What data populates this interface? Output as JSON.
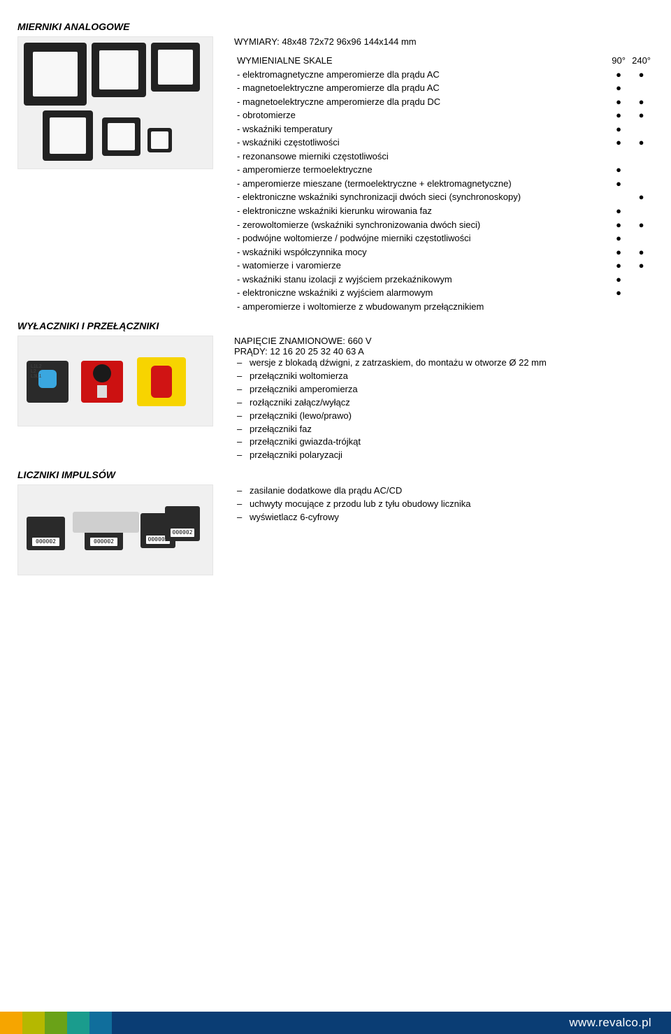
{
  "sections": {
    "analog": "MIERNIKI ANALOGOWE",
    "switches": "WYŁACZNIKI I PRZEŁĄCZNIKI",
    "counters": "LICZNIKI IMPULSÓW"
  },
  "dimensions": "WYMIARY: 48x48 72x72 96x96 144x144 mm",
  "skale_header": {
    "label": "WYMIENIALNE SKALE",
    "col1": "90°",
    "col2": "240°"
  },
  "skale_rows": [
    {
      "label": "- elektromagnetyczne amperomierze dla prądu AC",
      "c1": "●",
      "c2": "●"
    },
    {
      "label": "- magnetoelektryczne amperomierze dla prądu AC",
      "c1": "●",
      "c2": ""
    },
    {
      "label": "- magnetoelektryczne amperomierze dla prądu DC",
      "c1": "●",
      "c2": "●"
    },
    {
      "label": "- obrotomierze",
      "c1": "●",
      "c2": "●"
    },
    {
      "label": "- wskaźniki temperatury",
      "c1": "●",
      "c2": ""
    },
    {
      "label": "- wskaźniki częstotliwości",
      "c1": "●",
      "c2": "●"
    },
    {
      "label": "- rezonansowe mierniki częstotliwości",
      "c1": "",
      "c2": ""
    },
    {
      "label": "- amperomierze termoelektryczne",
      "c1": "●",
      "c2": ""
    },
    {
      "label": "- amperomierze mieszane (termoelektryczne + elektromagnetyczne)",
      "c1": "●",
      "c2": ""
    },
    {
      "label": "- elektroniczne wskaźniki synchronizacji dwóch sieci (synchronoskopy)",
      "c1": "",
      "c2": "●"
    },
    {
      "label": "- elektroniczne wskaźniki kierunku wirowania faz",
      "c1": "●",
      "c2": ""
    },
    {
      "label": "- zerowoltomierze (wskaźniki synchronizowania dwóch sieci)",
      "c1": "●",
      "c2": "●"
    },
    {
      "label": "- podwójne woltomierze / podwójne mierniki częstotliwości",
      "c1": "●",
      "c2": ""
    },
    {
      "label": "- wskaźniki współczynnika mocy",
      "c1": "●",
      "c2": "●"
    },
    {
      "label": "- watomierze i varomierze",
      "c1": "●",
      "c2": "●"
    },
    {
      "label": "- wskaźniki stanu izolacji z wyjściem przekaźnikowym",
      "c1": "●",
      "c2": ""
    },
    {
      "label": "- elektroniczne wskaźniki z wyjściem alarmowym",
      "c1": "●",
      "c2": ""
    },
    {
      "label": "- amperomierze i woltomierze z wbudowanym przełącznikiem",
      "c1": "",
      "c2": ""
    }
  ],
  "switches_spec": {
    "voltage": "NAPIĘCIE ZNAMIONOWE: 660 V",
    "currents": "PRĄDY: 12 16 20 25 32 40 63 A"
  },
  "switches_items": [
    "wersje z blokadą dźwigni, z zatrzaskiem, do montażu w otworze Ø 22 mm",
    "przełączniki woltomierza",
    "przełączniki amperomierza",
    "rozłączniki załącz/wyłącz",
    "przełączniki (lewo/prawo)",
    "przełączniki faz",
    "przełączniki gwiazda-trójkąt",
    "przełączniki polaryzacji"
  ],
  "counters_items": [
    "zasilanie dodatkowe dla prądu AC/CD",
    "uchwyty mocujące z przodu lub z tyłu obudowy licznika",
    "wyświetlacz 6-cyfrowy"
  ],
  "footer_url": "www.revalco.pl",
  "colors": {
    "stripe1": "#f6a500",
    "stripe2": "#b5b800",
    "stripe3": "#6aa218",
    "stripe4": "#1a9c8d",
    "stripe5": "#106e9c",
    "footer_fill": "#0a3d74"
  }
}
